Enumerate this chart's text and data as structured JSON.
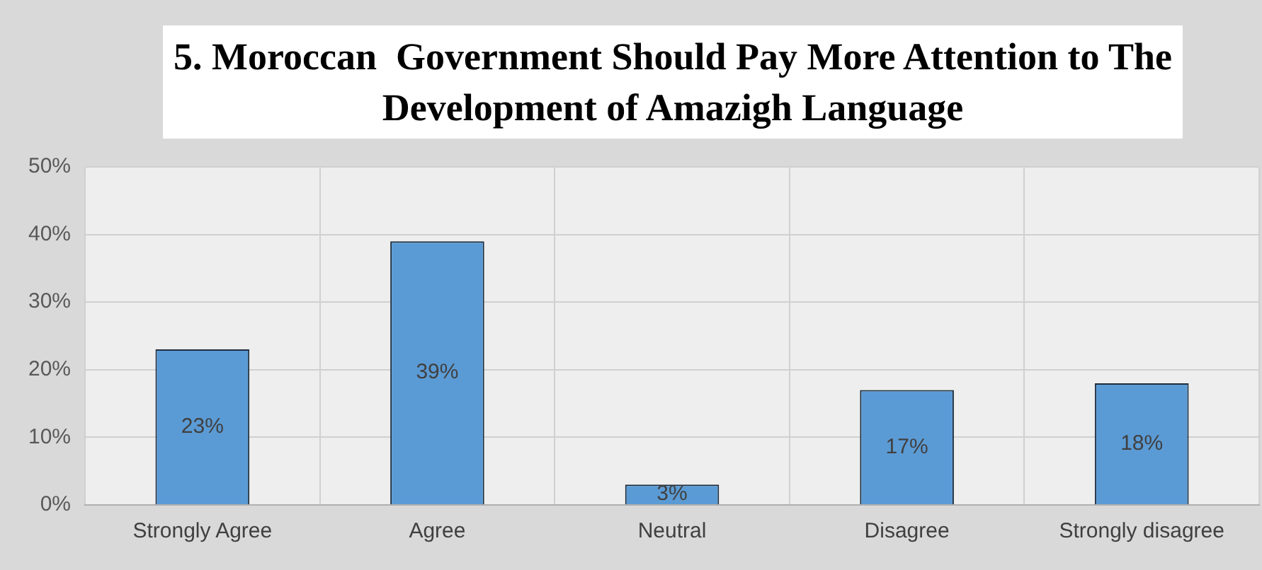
{
  "chart_data": {
    "type": "bar",
    "title": "5. Moroccan  Government Should Pay More Attention to The Development of Amazigh Language",
    "categories": [
      "Strongly Agree",
      "Agree",
      "Neutral",
      "Disagree",
      "Strongly disagree"
    ],
    "values": [
      23,
      39,
      3,
      17,
      18
    ],
    "color": "#5b9bd5",
    "data_labels": true,
    "value_labels": [
      "23%",
      "39%",
      "3%",
      "17%",
      "18%"
    ],
    "ylim": [
      0,
      50
    ],
    "yticks": [
      {
        "value": 0,
        "label": "0%"
      },
      {
        "value": 10,
        "label": "10%"
      },
      {
        "value": 20,
        "label": "20%"
      },
      {
        "value": 30,
        "label": "30%"
      },
      {
        "value": 40,
        "label": "40%"
      },
      {
        "value": 50,
        "label": "50%"
      }
    ],
    "grid": true
  }
}
